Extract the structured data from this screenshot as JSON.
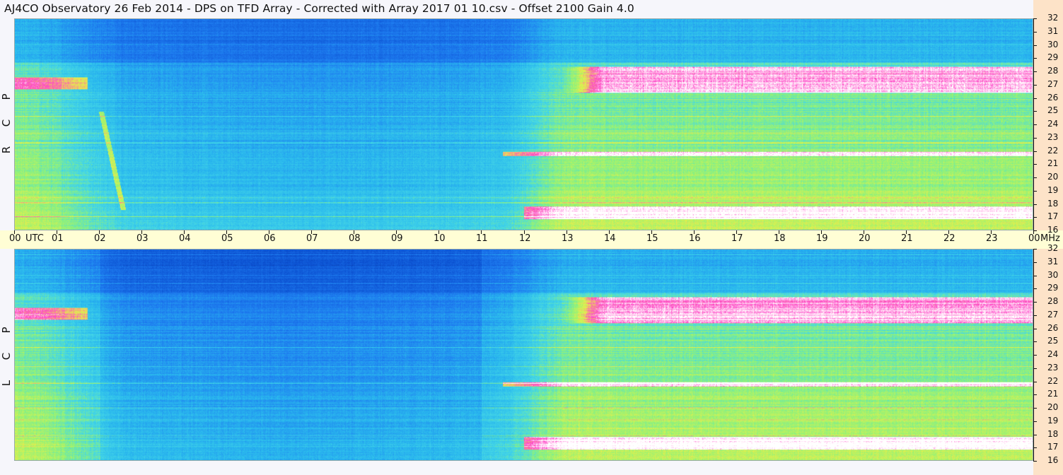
{
  "title": "AJ4CO Observatory  26 Feb 2014  -  DPS on TFD Array  -  Corrected with Array 2017 01 10.csv  -  Offset 2100  Gain 4.0",
  "panels": [
    {
      "id": "rcp",
      "label_letters": [
        "R",
        "C",
        "P"
      ]
    },
    {
      "id": "lcp",
      "label_letters": [
        "L",
        "C",
        "P"
      ]
    }
  ],
  "colors": {
    "deep": "#062f88",
    "dark_blue": "#0b4fd0",
    "blue": "#1e7cf0",
    "cyan": "#29b8ee",
    "light_cyan": "#45d7e6",
    "green": "#8ef27a",
    "yellow": "#e6f04a",
    "magenta": "#ff45c8",
    "white": "#ffffff",
    "utc_bar": "#fffed5",
    "freq_strip": "#fde3c8"
  },
  "chart_data": {
    "type": "heatmap",
    "title": "AJ4CO Observatory  26 Feb 2014  -  DPS on TFD Array  -  Corrected with Array 2017 01 10.csv  -  Offset 2100  Gain 4.0",
    "x_axis": {
      "unit_label": "UTC",
      "range": [
        0,
        24
      ],
      "tick_labels": [
        "00",
        "01",
        "02",
        "03",
        "04",
        "05",
        "06",
        "07",
        "08",
        "09",
        "10",
        "11",
        "12",
        "13",
        "14",
        "15",
        "16",
        "17",
        "18",
        "19",
        "20",
        "21",
        "22",
        "23",
        "00"
      ]
    },
    "y_axis": {
      "unit_label": "MHz",
      "range": [
        16,
        32
      ],
      "tick_labels": [
        "16",
        "17",
        "18",
        "19",
        "20",
        "21",
        "22",
        "23",
        "24",
        "25",
        "26",
        "27",
        "28",
        "29",
        "30",
        "31",
        "32"
      ]
    },
    "panels": [
      "RCP",
      "LCP"
    ],
    "description_values": {
      "quiet_hours_utc": [
        3,
        11
      ],
      "bright_band_mhz": [
        26.5,
        28.5
      ]
    }
  }
}
